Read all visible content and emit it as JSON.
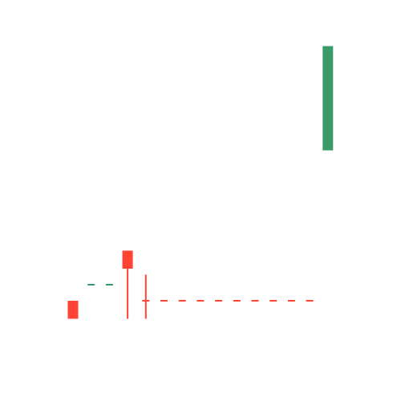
{
  "chart_data": {
    "type": "candlestick",
    "colors": {
      "up": "#3a9a6a",
      "down": "#ff4433",
      "down_wick": "#ff4433"
    },
    "ylim": [
      0,
      100
    ],
    "candles": [
      {
        "index": 0,
        "open": 20.5,
        "close": 25.0,
        "high": 25.0,
        "low": 20.5,
        "direction": "down"
      },
      {
        "index": 1,
        "open": 29.0,
        "close": 29.0,
        "high": 29.0,
        "low": 29.0,
        "direction": "up"
      },
      {
        "index": 2,
        "open": 29.0,
        "close": 29.0,
        "high": 29.0,
        "low": 29.0,
        "direction": "up"
      },
      {
        "index": 3,
        "open": 33.0,
        "close": 37.5,
        "high": 37.5,
        "low": 20.5,
        "direction": "down"
      },
      {
        "index": 4,
        "open": 25.0,
        "close": 25.0,
        "high": 31.5,
        "low": 20.5,
        "direction": "down"
      },
      {
        "index": 5,
        "open": 25.0,
        "close": 25.0,
        "high": 25.0,
        "low": 25.0,
        "direction": "down"
      },
      {
        "index": 6,
        "open": 25.0,
        "close": 25.0,
        "high": 25.0,
        "low": 25.0,
        "direction": "down"
      },
      {
        "index": 7,
        "open": 25.0,
        "close": 25.0,
        "high": 25.0,
        "low": 25.0,
        "direction": "down"
      },
      {
        "index": 8,
        "open": 25.0,
        "close": 25.0,
        "high": 25.0,
        "low": 25.0,
        "direction": "down"
      },
      {
        "index": 9,
        "open": 25.0,
        "close": 25.0,
        "high": 25.0,
        "low": 25.0,
        "direction": "down"
      },
      {
        "index": 10,
        "open": 25.0,
        "close": 25.0,
        "high": 25.0,
        "low": 25.0,
        "direction": "down"
      },
      {
        "index": 11,
        "open": 25.0,
        "close": 25.0,
        "high": 25.0,
        "low": 25.0,
        "direction": "down"
      },
      {
        "index": 12,
        "open": 25.0,
        "close": 25.0,
        "high": 25.0,
        "low": 25.0,
        "direction": "down"
      },
      {
        "index": 13,
        "open": 25.0,
        "close": 25.0,
        "high": 25.0,
        "low": 25.0,
        "direction": "down"
      },
      {
        "index": 14,
        "open": 62.5,
        "close": 88.5,
        "high": 88.5,
        "low": 62.5,
        "direction": "up"
      }
    ],
    "title": "",
    "xlabel": "",
    "ylabel": ""
  }
}
